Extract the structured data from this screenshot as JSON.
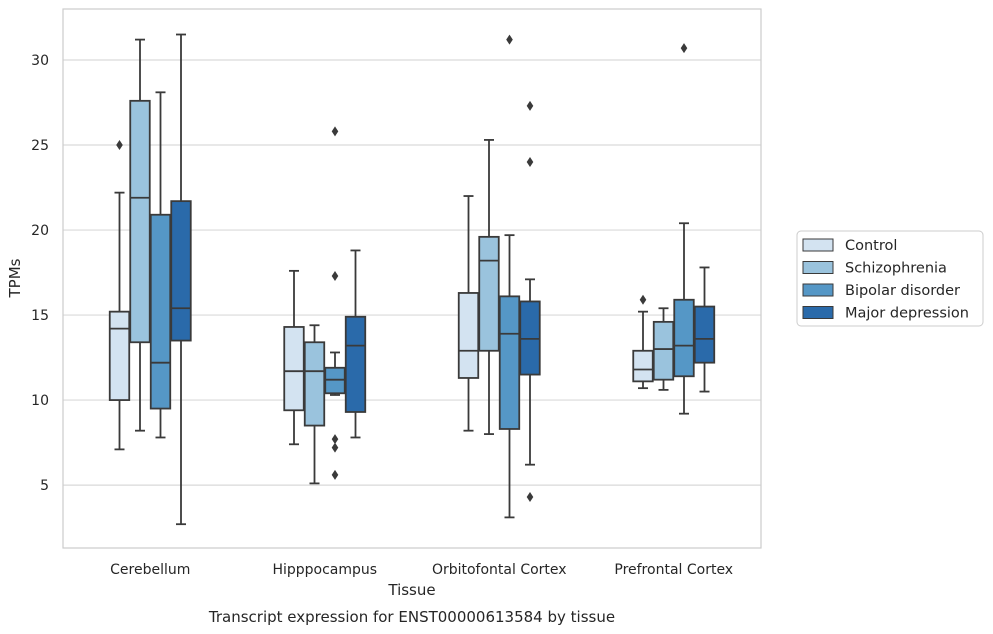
{
  "chart_data": {
    "type": "boxplot",
    "xlabel": "Tissue",
    "ylabel": "TPMs",
    "caption": "Transcript expression for ENST00000613584 by tissue",
    "ylim": [
      1.3,
      33.0
    ],
    "yticks": [
      5,
      10,
      15,
      20,
      25,
      30
    ],
    "grid": "horizontal",
    "legend_position": "right",
    "categories": [
      "Cerebellum",
      "Hipppocampus",
      "Orbitofontal Cortex",
      "Prefrontal Cortex"
    ],
    "series": [
      {
        "name": "Control",
        "color": "#d3e3f1",
        "boxes": [
          {
            "whislo": 7.1,
            "q1": 10.0,
            "med": 14.2,
            "q3": 15.2,
            "whishi": 22.2,
            "fliers": [
              25.0
            ]
          },
          {
            "whislo": 7.4,
            "q1": 9.4,
            "med": 11.7,
            "q3": 14.3,
            "whishi": 17.6,
            "fliers": []
          },
          {
            "whislo": 8.2,
            "q1": 11.3,
            "med": 12.9,
            "q3": 16.3,
            "whishi": 22.0,
            "fliers": []
          },
          {
            "whislo": 10.7,
            "q1": 11.1,
            "med": 11.8,
            "q3": 12.9,
            "whishi": 15.2,
            "fliers": [
              15.9
            ]
          }
        ]
      },
      {
        "name": "Schizophrenia",
        "color": "#9ac3dd",
        "boxes": [
          {
            "whislo": 8.2,
            "q1": 13.4,
            "med": 21.9,
            "q3": 27.6,
            "whishi": 31.2,
            "fliers": []
          },
          {
            "whislo": 5.1,
            "q1": 8.5,
            "med": 11.7,
            "q3": 13.4,
            "whishi": 14.4,
            "fliers": []
          },
          {
            "whislo": 8.0,
            "q1": 12.9,
            "med": 18.2,
            "q3": 19.6,
            "whishi": 25.3,
            "fliers": []
          },
          {
            "whislo": 10.6,
            "q1": 11.2,
            "med": 13.0,
            "q3": 14.6,
            "whishi": 15.4,
            "fliers": []
          }
        ]
      },
      {
        "name": "Bipolar disorder",
        "color": "#5597c6",
        "boxes": [
          {
            "whislo": 7.8,
            "q1": 9.5,
            "med": 12.2,
            "q3": 20.9,
            "whishi": 28.1,
            "fliers": []
          },
          {
            "whislo": 10.3,
            "q1": 10.4,
            "med": 11.2,
            "q3": 11.9,
            "whishi": 12.8,
            "fliers": [
              25.8,
              17.3,
              7.7,
              7.2,
              5.6
            ]
          },
          {
            "whislo": 3.1,
            "q1": 8.3,
            "med": 13.9,
            "q3": 16.1,
            "whishi": 19.7,
            "fliers": [
              31.2
            ]
          },
          {
            "whislo": 9.2,
            "q1": 11.4,
            "med": 13.2,
            "q3": 15.9,
            "whishi": 20.4,
            "fliers": [
              30.7
            ]
          }
        ]
      },
      {
        "name": "Major depression",
        "color": "#2a6aaa",
        "boxes": [
          {
            "whislo": 2.7,
            "q1": 13.5,
            "med": 15.4,
            "q3": 21.7,
            "whishi": 31.5,
            "fliers": []
          },
          {
            "whislo": 7.8,
            "q1": 9.3,
            "med": 13.2,
            "q3": 14.9,
            "whishi": 18.8,
            "fliers": []
          },
          {
            "whislo": 6.2,
            "q1": 11.5,
            "med": 13.6,
            "q3": 15.8,
            "whishi": 17.1,
            "fliers": [
              27.3,
              24.0,
              4.3
            ]
          },
          {
            "whislo": 10.5,
            "q1": 12.2,
            "med": 13.6,
            "q3": 15.5,
            "whishi": 17.8,
            "fliers": []
          }
        ]
      }
    ]
  }
}
